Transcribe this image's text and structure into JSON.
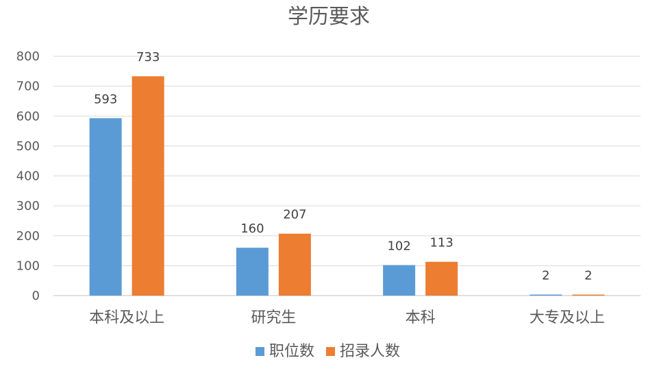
{
  "chart_data": {
    "type": "bar",
    "title": "学历要求",
    "categories": [
      "本科及以上",
      "研究生",
      "本科",
      "大专及以上"
    ],
    "series": [
      {
        "name": "职位数",
        "values": [
          593,
          160,
          102,
          2
        ],
        "color": "#5b9bd5"
      },
      {
        "name": "招录人数",
        "values": [
          733,
          207,
          113,
          2
        ],
        "color": "#ed7d31"
      }
    ],
    "ylim": [
      0,
      800
    ],
    "yticks": [
      0,
      100,
      200,
      300,
      400,
      500,
      600,
      700,
      800
    ],
    "grid": true,
    "legend_position": "bottom",
    "data_labels": true
  }
}
